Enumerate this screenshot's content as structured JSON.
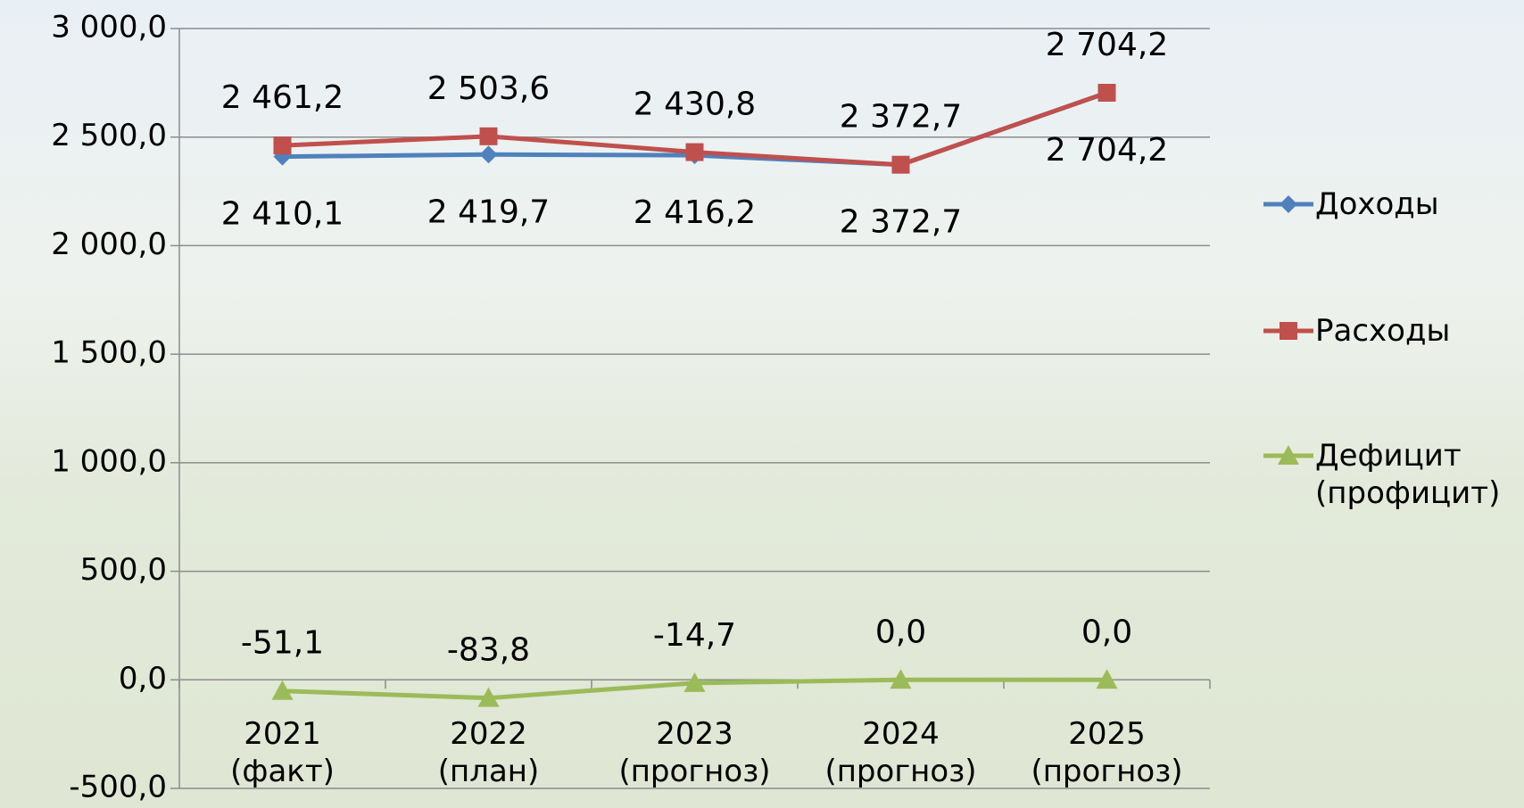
{
  "chart_data": {
    "type": "line",
    "categories": [
      "2021\n(факт)",
      "2022\n(план)",
      "2023\n(прогноз)",
      "2024\n(прогноз)",
      "2025\n(прогноз)"
    ],
    "series": [
      {
        "name": "Доходы",
        "color": "#4f81bd",
        "marker": "diamond",
        "values": [
          2410.1,
          2419.7,
          2416.2,
          2372.7,
          2704.2
        ],
        "value_labels": [
          "2 410,1",
          "2 419,7",
          "2 416,2",
          "2 372,7",
          "2 704,2"
        ]
      },
      {
        "name": "Расходы",
        "color": "#c0504d",
        "marker": "square",
        "values": [
          2461.2,
          2503.6,
          2430.8,
          2372.7,
          2704.2
        ],
        "value_labels": [
          "2 461,2",
          "2 503,6",
          "2 430,8",
          "2 372,7",
          "2 704,2"
        ]
      },
      {
        "name": "Дефицит (профицит)",
        "color": "#9bbb59",
        "marker": "triangle",
        "values": [
          -51.1,
          -83.8,
          -14.7,
          0.0,
          0.0
        ],
        "value_labels": [
          "-51,1",
          "-83,8",
          "-14,7",
          "0,0",
          "0,0"
        ]
      }
    ],
    "ylim": [
      -500,
      3000
    ],
    "yticks": [
      {
        "value": -500,
        "label": "-500,0"
      },
      {
        "value": 0,
        "label": "0,0"
      },
      {
        "value": 500,
        "label": "500,0"
      },
      {
        "value": 1000,
        "label": "1 000,0"
      },
      {
        "value": 1500,
        "label": "1 500,0"
      },
      {
        "value": 2000,
        "label": "2 000,0"
      },
      {
        "value": 2500,
        "label": "2 500,0"
      },
      {
        "value": 3000,
        "label": "3 000,0"
      }
    ],
    "grid": true,
    "legend": "right"
  }
}
